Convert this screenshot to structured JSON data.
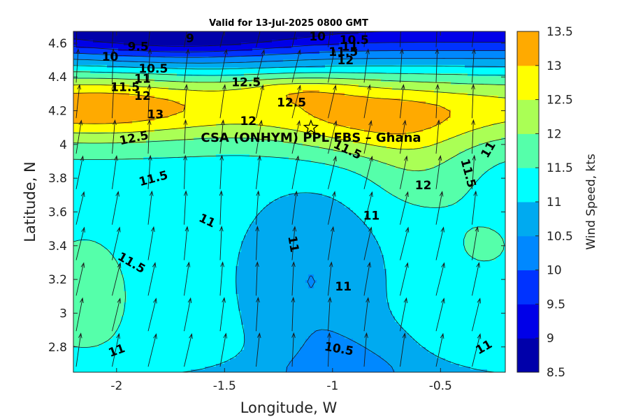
{
  "title": "Valid for 13-Jul-2025 0800 GMT",
  "site_label": "CSA (ONHYM) PPL EBS  – Ghana",
  "chart_data": {
    "type": "heatmap",
    "subtype": "filled-contour-with-wind-vectors",
    "xlabel": "Longitude, W",
    "ylabel": "Latitude, N",
    "xlim": [
      -2.2,
      -0.2
    ],
    "ylim": [
      2.65,
      4.67
    ],
    "xticks": [
      -2,
      -1.5,
      -1,
      -0.5
    ],
    "xtick_labels": [
      "-2",
      "-1.5",
      "-1",
      "-0.5"
    ],
    "yticks": [
      2.8,
      3,
      3.2,
      3.4,
      3.6,
      3.8,
      4,
      4.2,
      4.4,
      4.6
    ],
    "ytick_labels": [
      "2.8",
      "3",
      "3.2",
      "3.4",
      "3.6",
      "3.8",
      "4",
      "4.2",
      "4.4",
      "4.6"
    ],
    "colorbar": {
      "label": "Wind Speed, kts",
      "levels": [
        8.5,
        9,
        9.5,
        10,
        10.5,
        11,
        11.5,
        12,
        12.5,
        13,
        13.5
      ],
      "tick_labels": [
        "8.5",
        "9",
        "9.5",
        "10",
        "10.5",
        "11",
        "11.5",
        "12",
        "12.5",
        "13",
        "13.5"
      ],
      "colors": [
        "#0000AA",
        "#0000E8",
        "#0033FF",
        "#0088FF",
        "#00AAF0",
        "#00FFFF",
        "#55FFAA",
        "#AAFF55",
        "#FFFF00",
        "#FFAA00",
        "#FF5500"
      ]
    },
    "site": {
      "lon": -1.1,
      "lat": 4.1,
      "marker": "star"
    },
    "contour_labels": [
      {
        "text": "9",
        "lon": -1.66,
        "lat": 4.63,
        "angle": 0
      },
      {
        "text": "9.5",
        "lon": -1.9,
        "lat": 4.58,
        "angle": 0
      },
      {
        "text": "10",
        "lon": -2.03,
        "lat": 4.52,
        "angle": 0
      },
      {
        "text": "10.5",
        "lon": -1.83,
        "lat": 4.45,
        "angle": 0
      },
      {
        "text": "11",
        "lon": -1.88,
        "lat": 4.39,
        "angle": 0
      },
      {
        "text": "11.5",
        "lon": -1.96,
        "lat": 4.34,
        "angle": 0
      },
      {
        "text": "12",
        "lon": -1.88,
        "lat": 4.29,
        "angle": 0
      },
      {
        "text": "13",
        "lon": -1.82,
        "lat": 4.18,
        "angle": 0
      },
      {
        "text": "12.5",
        "lon": -1.92,
        "lat": 4.04,
        "angle": -12
      },
      {
        "text": "11.5",
        "lon": -1.83,
        "lat": 3.8,
        "angle": -15
      },
      {
        "text": "10",
        "lon": -1.07,
        "lat": 4.64,
        "angle": 0
      },
      {
        "text": "10.5",
        "lon": -0.9,
        "lat": 4.62,
        "angle": 0
      },
      {
        "text": "11",
        "lon": -0.92,
        "lat": 4.58,
        "angle": 0
      },
      {
        "text": "11.5",
        "lon": -0.95,
        "lat": 4.55,
        "angle": 0
      },
      {
        "text": "12",
        "lon": -0.94,
        "lat": 4.5,
        "angle": 0
      },
      {
        "text": "12.5",
        "lon": -1.4,
        "lat": 4.37,
        "angle": 0
      },
      {
        "text": "12.5",
        "lon": -1.19,
        "lat": 4.25,
        "angle": 0
      },
      {
        "text": "12",
        "lon": -1.39,
        "lat": 4.14,
        "angle": 0
      },
      {
        "text": "11.5",
        "lon": -0.93,
        "lat": 3.97,
        "angle": 25
      },
      {
        "text": "12",
        "lon": -0.58,
        "lat": 3.76,
        "angle": 0
      },
      {
        "text": "11.5",
        "lon": -0.37,
        "lat": 3.83,
        "angle": 75
      },
      {
        "text": "11",
        "lon": -0.28,
        "lat": 3.97,
        "angle": -60
      },
      {
        "text": "11",
        "lon": -1.58,
        "lat": 3.55,
        "angle": 25
      },
      {
        "text": "11",
        "lon": -1.18,
        "lat": 3.41,
        "angle": 80
      },
      {
        "text": "11",
        "lon": -0.82,
        "lat": 3.58,
        "angle": 0
      },
      {
        "text": "11.5",
        "lon": -1.93,
        "lat": 3.3,
        "angle": 30
      },
      {
        "text": "11",
        "lon": -0.95,
        "lat": 3.16,
        "angle": 0
      },
      {
        "text": "10.5",
        "lon": -0.97,
        "lat": 2.79,
        "angle": 10
      },
      {
        "text": "11",
        "lon": -2.0,
        "lat": 2.78,
        "angle": -20
      },
      {
        "text": "11",
        "lon": -0.3,
        "lat": 2.8,
        "angle": -30
      }
    ]
  }
}
